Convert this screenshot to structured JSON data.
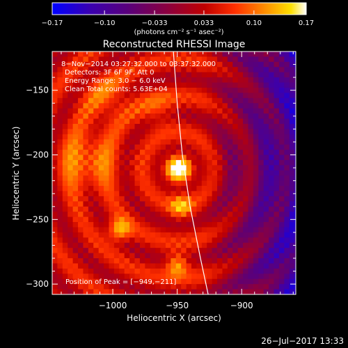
{
  "chart_data": {
    "type": "heatmap",
    "title": "Reconstructed RHESSI Image",
    "xlabel": "Heliocentric X (arcsec)",
    "ylabel": "Heliocentric Y (arcsec)",
    "xlim": [
      -1047,
      -858
    ],
    "ylim": [
      -308,
      -120
    ],
    "x_ticks": [
      {
        "value": -1000,
        "label": "−1000"
      },
      {
        "value": -950,
        "label": "−950"
      },
      {
        "value": -900,
        "label": "−900"
      }
    ],
    "y_ticks": [
      {
        "value": -150,
        "label": "−150"
      },
      {
        "value": -200,
        "label": "−200"
      },
      {
        "value": -250,
        "label": "−250"
      },
      {
        "value": -300,
        "label": "−300"
      }
    ],
    "colorbar": {
      "min": -0.17,
      "max": 0.17,
      "ticks": [
        {
          "value": -0.17,
          "label": "−0.17"
        },
        {
          "value": -0.1,
          "label": "−0.10"
        },
        {
          "value": -0.033,
          "label": "−0.033"
        },
        {
          "value": 0.033,
          "label": "0.033"
        },
        {
          "value": 0.1,
          "label": "0.10"
        },
        {
          "value": 0.17,
          "label": "0.17"
        }
      ],
      "unit_label": "(photons cm⁻² s⁻¹ asec⁻²)"
    },
    "annotations": [
      "8−Nov−2014 03:27:32.000 to 03:37:32.000",
      "Detectors: 3F 6F 9F, Att 0",
      "Energy Range: 3.0 − 6.0 keV",
      "Clean     Total counts: 5.63E+04"
    ],
    "peak_label": "Position of Peak = [−949,−211]",
    "peak": {
      "x": -949,
      "y": -211,
      "value": 0.17
    },
    "sources": [
      {
        "x": -949,
        "y": -211,
        "sigma": 7,
        "value": 0.17
      },
      {
        "x": -947,
        "y": -240,
        "sigma": 6,
        "value": 0.09
      },
      {
        "x": -995,
        "y": -258,
        "sigma": 6,
        "value": 0.11
      },
      {
        "x": -950,
        "y": -285,
        "sigma": 6,
        "value": 0.1
      },
      {
        "x": -1020,
        "y": -205,
        "sigma": 16,
        "value": 0.07
      },
      {
        "x": -1005,
        "y": -155,
        "sigma": 14,
        "value": 0.05
      },
      {
        "x": -965,
        "y": -165,
        "sigma": 10,
        "value": 0.04
      }
    ],
    "limb_points": [
      {
        "x": -953,
        "y": -120
      },
      {
        "x": -950,
        "y": -160
      },
      {
        "x": -946,
        "y": -200
      },
      {
        "x": -940,
        "y": -240
      },
      {
        "x": -932,
        "y": -280
      },
      {
        "x": -926,
        "y": -308
      }
    ],
    "grid": false,
    "colormap": [
      "#0000ff",
      "#3a00b0",
      "#5a007a",
      "#8a0040",
      "#c00000",
      "#ff3000",
      "#ff9000",
      "#ffe000",
      "#ffffff"
    ]
  },
  "footer_timestamp": "26−Jul−2017 13:33"
}
